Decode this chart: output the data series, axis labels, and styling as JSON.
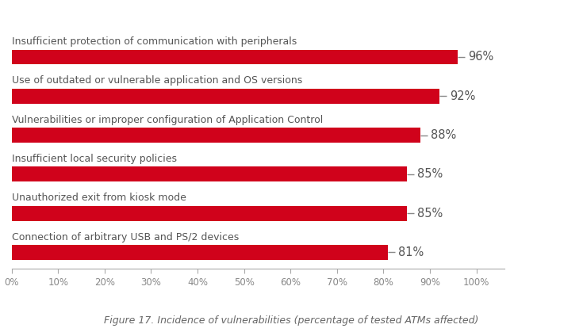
{
  "categories": [
    "Connection of arbitrary USB and PS/2 devices",
    "Unauthorized exit from kiosk mode",
    "Insufficient local security policies",
    "Vulnerabilities or improper configuration of Application Control",
    "Use of outdated or vulnerable application and OS versions",
    "Insufficient protection of communication with peripherals"
  ],
  "values": [
    81,
    85,
    85,
    88,
    92,
    96
  ],
  "bar_color": "#D0021B",
  "label_color": "#555555",
  "value_label_color": "#555555",
  "background_color": "#FFFFFF",
  "caption": "Figure 17. Incidence of vulnerabilities (percentage of tested ATMs affected)",
  "xlim_max": 100,
  "xlim_display_max": 106,
  "xtick_values": [
    0,
    10,
    20,
    30,
    40,
    50,
    60,
    70,
    80,
    90,
    100
  ],
  "xtick_labels": [
    "0%",
    "10%",
    "20%",
    "30%",
    "40%",
    "50%",
    "60%",
    "70%",
    "80%",
    "90%",
    "100%"
  ],
  "bar_height": 0.38,
  "label_fontsize": 9.0,
  "value_fontsize": 10.5,
  "caption_fontsize": 9,
  "tick_fontsize": 8.5,
  "tick_color": "#888888",
  "spine_color": "#AAAAAA"
}
